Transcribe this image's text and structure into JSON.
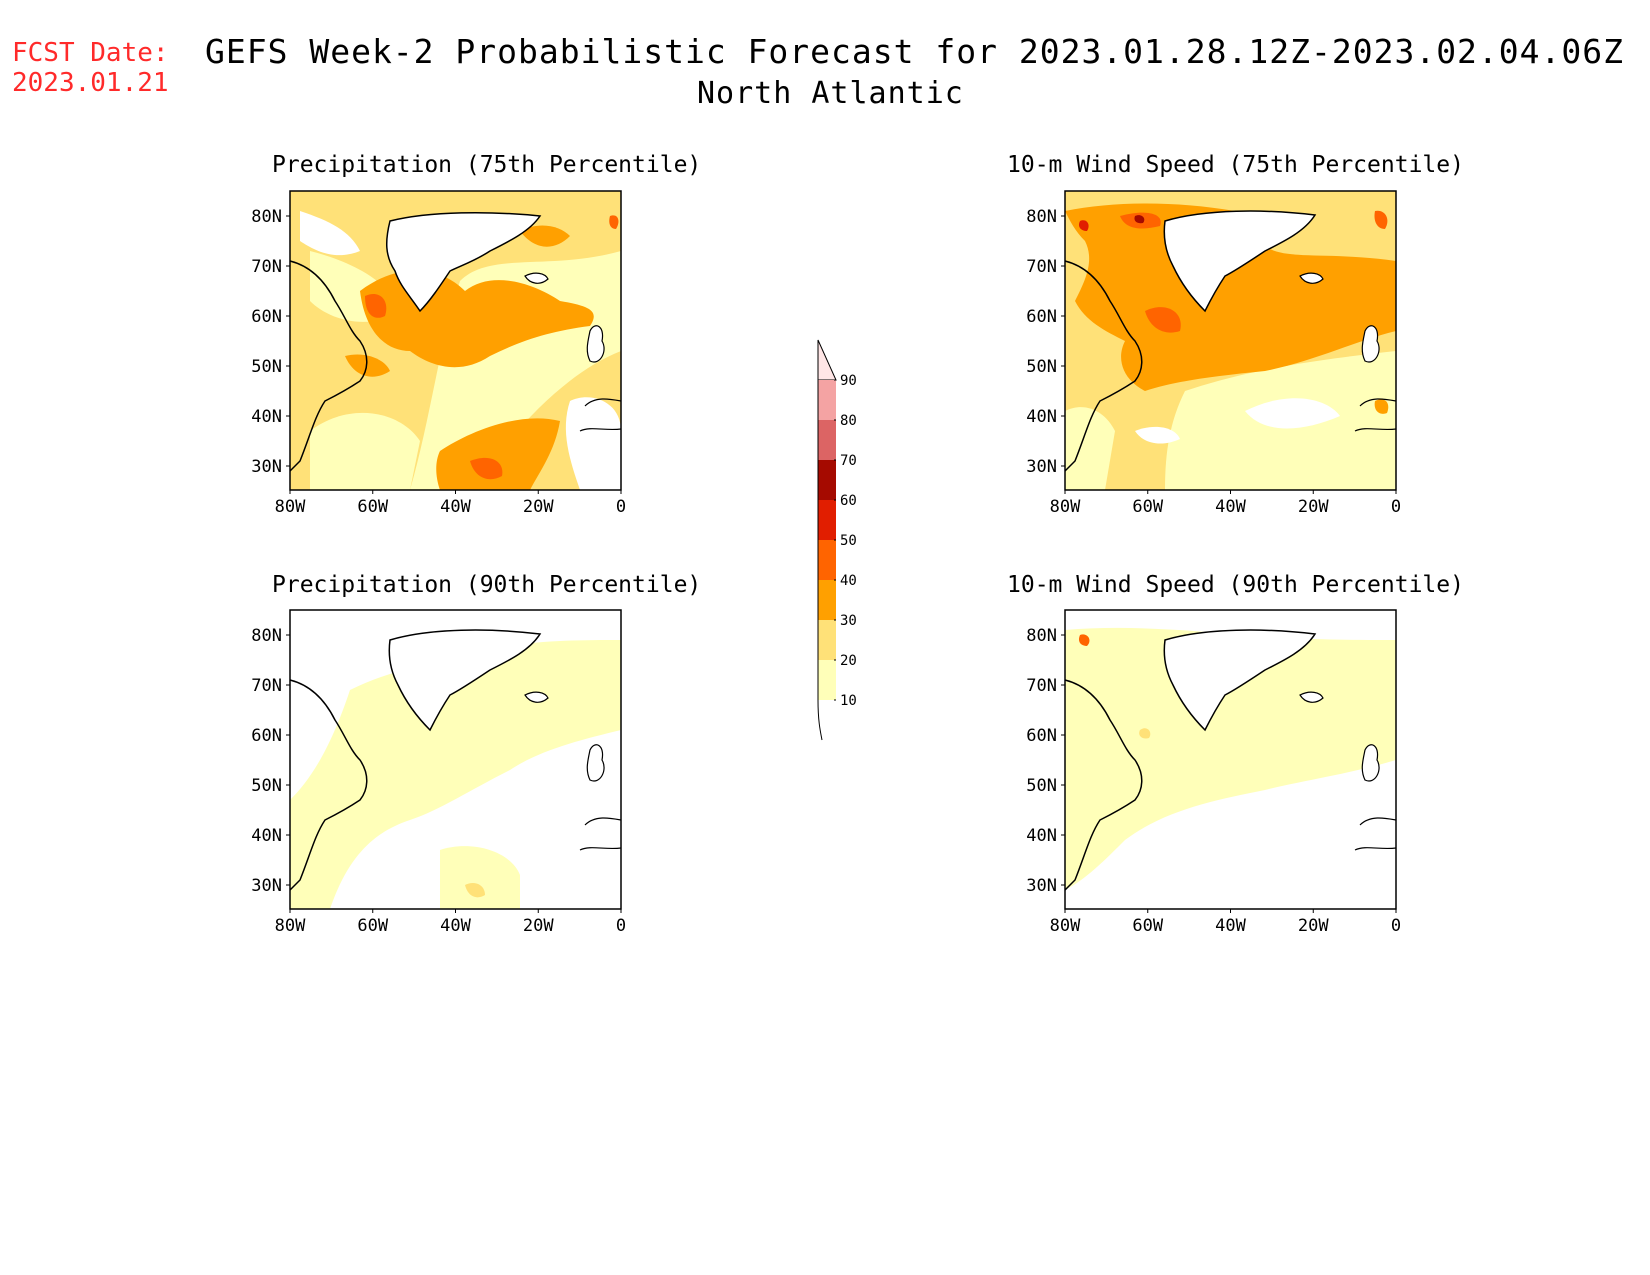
{
  "fcst_date": {
    "label": "FCST Date:",
    "value": "2023.01.21"
  },
  "title": {
    "main": "GEFS Week-2 Probabilistic Forecast for 2023.01.28.12Z-2023.02.04.06Z",
    "region": "North Atlantic"
  },
  "panels": [
    {
      "id": "precip75",
      "title": "Precipitation (75th Percentile)"
    },
    {
      "id": "wind75",
      "title": "10-m Wind Speed (75th Percentile)"
    },
    {
      "id": "precip90",
      "title": "Precipitation (90th Percentile)"
    },
    {
      "id": "wind90",
      "title": "10-m Wind Speed (90th Percentile)"
    }
  ],
  "axes": {
    "lat_labels": [
      "80N",
      "70N",
      "60N",
      "50N",
      "40N",
      "30N"
    ],
    "lon_labels": [
      "80W",
      "60W",
      "40W",
      "20W",
      "0"
    ]
  },
  "colorbar": {
    "labels": [
      "90",
      "80",
      "70",
      "60",
      "50",
      "40",
      "30",
      "20",
      "10"
    ],
    "colors": [
      "#ffe6e6",
      "#f4a3a3",
      "#dc6464",
      "#a50a00",
      "#e11e00",
      "#ff6400",
      "#ffa000",
      "#ffe178",
      "#ffffb9"
    ]
  }
}
